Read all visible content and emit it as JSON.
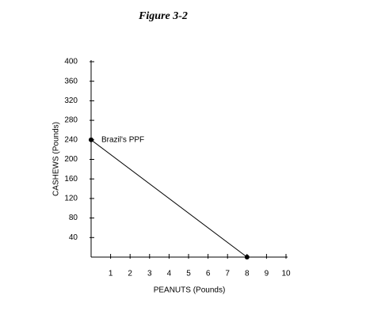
{
  "chart_data": {
    "type": "line",
    "title": "Figure 3-2",
    "x_label": "PEANUTS (Pounds)",
    "y_label": "CASHEWS (Pounds)",
    "series": [
      {
        "name": "Brazil's PPF",
        "color": "#000000",
        "x": [
          0,
          8
        ],
        "values": [
          240,
          0
        ]
      }
    ],
    "xlim": [
      0,
      10
    ],
    "xticks": [
      1,
      2,
      3,
      4,
      5,
      6,
      7,
      8,
      9,
      10
    ],
    "ylim": [
      0,
      400
    ],
    "yticks": [
      40,
      80,
      120,
      160,
      200,
      240,
      280,
      320,
      360,
      400
    ],
    "grid": false
  }
}
